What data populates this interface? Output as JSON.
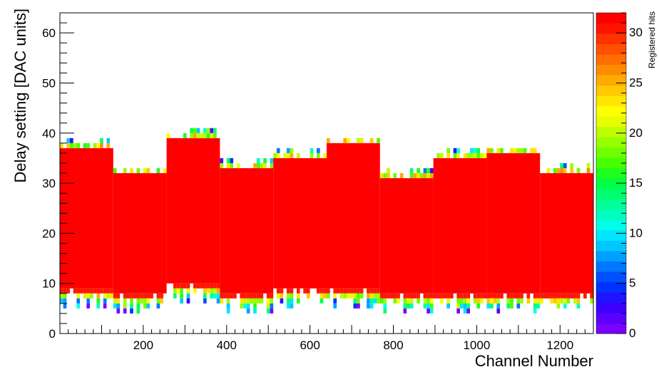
{
  "chart_data": {
    "type": "heatmap",
    "title": "",
    "xlabel": "Channel Number",
    "ylabel": "Delay setting [DAC units]",
    "zlabel": "Registered hits",
    "xlim": [
      0,
      1280
    ],
    "ylim": [
      0,
      64
    ],
    "zlim": [
      0,
      32
    ],
    "x_ticks": [
      200,
      400,
      600,
      800,
      1000,
      1200
    ],
    "y_ticks": [
      0,
      10,
      20,
      30,
      40,
      50,
      60
    ],
    "z_ticks": [
      0,
      5,
      10,
      15,
      20,
      25,
      30
    ],
    "colormap": [
      "#7a00ff",
      "#5a00ff",
      "#3c00ff",
      "#1e14ff",
      "#0032ff",
      "#0050ff",
      "#0078ff",
      "#00a0ff",
      "#00c8ff",
      "#00e6ff",
      "#00ffe6",
      "#00ffbe",
      "#00ff96",
      "#00ff6e",
      "#00ff46",
      "#1eff1e",
      "#46ff00",
      "#6eff00",
      "#96ff00",
      "#beff00",
      "#e6ff00",
      "#ffff00",
      "#ffe600",
      "#ffc800",
      "#ffaa00",
      "#ff8c00",
      "#ff6e00",
      "#ff5000",
      "#ff3200",
      "#ff1400",
      "#ff0000"
    ],
    "grid": false,
    "segments": [
      {
        "x_start": 0,
        "x_end": 128,
        "full_min": 9,
        "full_max": 36,
        "hits_min": 5,
        "hits_max": 38
      },
      {
        "x_start": 128,
        "x_end": 256,
        "full_min": 8,
        "full_max": 31,
        "hits_min": 4,
        "hits_max": 32
      },
      {
        "x_start": 256,
        "x_end": 384,
        "full_min": 10,
        "full_max": 38,
        "hits_min": 6,
        "hits_max": 40
      },
      {
        "x_start": 384,
        "x_end": 512,
        "full_min": 8,
        "full_max": 32,
        "hits_min": 4,
        "hits_max": 34
      },
      {
        "x_start": 512,
        "x_end": 640,
        "full_min": 9,
        "full_max": 34,
        "hits_min": 5,
        "hits_max": 36
      },
      {
        "x_start": 640,
        "x_end": 768,
        "full_min": 9,
        "full_max": 37,
        "hits_min": 5,
        "hits_max": 38
      },
      {
        "x_start": 768,
        "x_end": 896,
        "full_min": 8,
        "full_max": 30,
        "hits_min": 4,
        "hits_max": 32
      },
      {
        "x_start": 896,
        "x_end": 1024,
        "full_min": 8,
        "full_max": 34,
        "hits_min": 4,
        "hits_max": 36
      },
      {
        "x_start": 1024,
        "x_end": 1152,
        "full_min": 8,
        "full_max": 35,
        "hits_min": 4,
        "hits_max": 36
      },
      {
        "x_start": 1152,
        "x_end": 1280,
        "full_min": 8,
        "full_max": 31,
        "hits_min": 5,
        "hits_max": 33
      }
    ]
  }
}
